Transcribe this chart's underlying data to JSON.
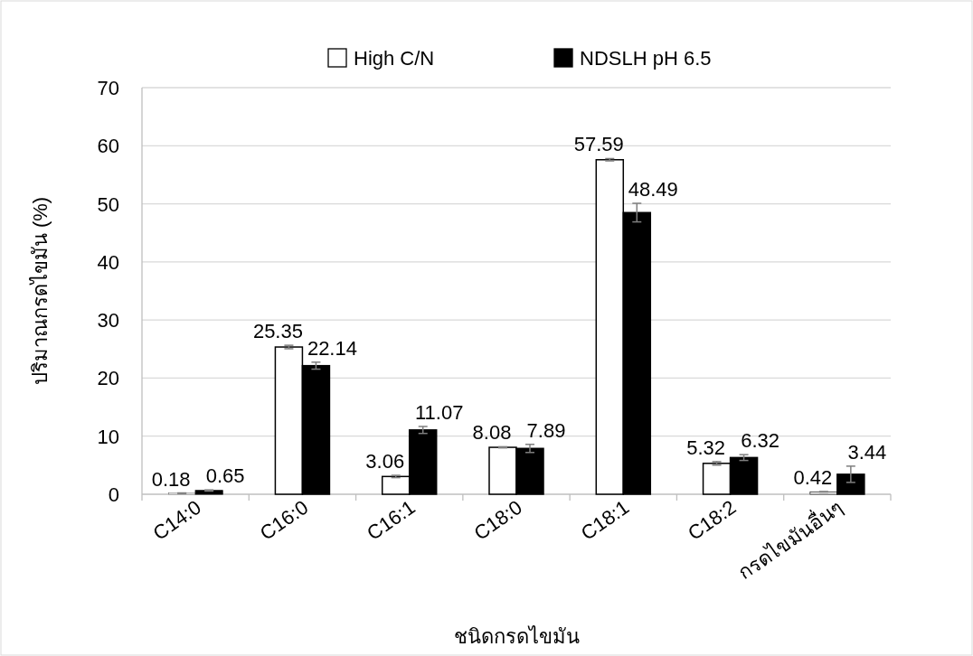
{
  "chart_data": {
    "type": "bar",
    "xlabel": "ชนิดกรดไขมัน",
    "ylabel": "ปริมาณกรดไขมัน (%)",
    "categories": [
      "C14:0",
      "C16:0",
      "C16:1",
      "C18:0",
      "C18:1",
      "C18:2",
      "กรดไขมันอื่นๆ"
    ],
    "series": [
      {
        "name": "High C/N",
        "color": "#ffffff",
        "values": [
          0.18,
          25.35,
          3.06,
          8.08,
          57.59,
          5.32,
          0.42
        ],
        "errors": [
          0.05,
          0.3,
          0.2,
          0.1,
          0.2,
          0.3,
          0.05
        ]
      },
      {
        "name": "NDSLH pH 6.5",
        "color": "#000000",
        "values": [
          0.65,
          22.14,
          11.07,
          7.89,
          48.49,
          6.32,
          3.44
        ],
        "errors": [
          0.1,
          0.6,
          0.6,
          0.7,
          1.6,
          0.5,
          1.4
        ]
      }
    ],
    "ylim": [
      0,
      70
    ],
    "yticks": [
      0,
      10,
      20,
      30,
      40,
      50,
      60,
      70
    ],
    "grid": "y",
    "legend": "top",
    "data_labels": true
  }
}
